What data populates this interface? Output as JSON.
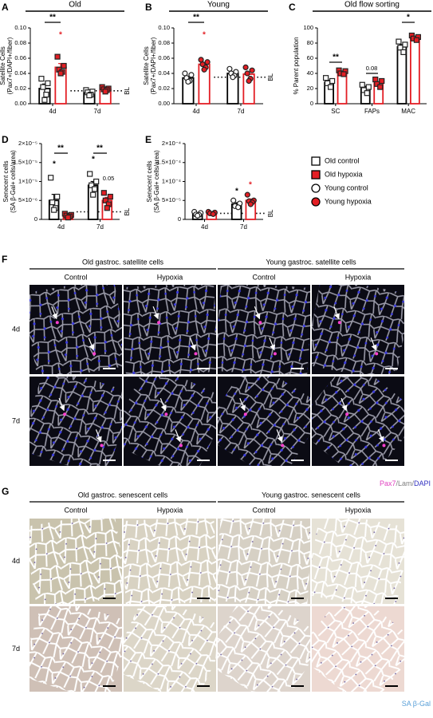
{
  "chart_data": [
    {
      "type": "bar",
      "panel_label": "A",
      "title": "Old",
      "y_label": [
        "Satellite Cells",
        "(Pax7+/DAPI+/fiber)"
      ],
      "categories": [
        "4d",
        "7d"
      ],
      "series": [
        {
          "name": "Old control",
          "color": "#000000",
          "marker": "square",
          "marker_fill": "#ffffff",
          "values": [
            0.02,
            0.014
          ],
          "errors": [
            0.006,
            0.002
          ],
          "points": [
            [
              0.033,
              0.027,
              0.022,
              0.012,
              0.005
            ],
            [
              0.018,
              0.016,
              0.015,
              0.012,
              0.011
            ]
          ]
        },
        {
          "name": "Old hypoxia",
          "color": "#e31e24",
          "marker": "square",
          "marker_fill": "#e31e24",
          "values": [
            0.048,
            0.019
          ],
          "errors": [
            0.005,
            0.002
          ],
          "points": [
            [
              0.062,
              0.05,
              0.045,
              0.042,
              0.04
            ],
            [
              0.022,
              0.02,
              0.019,
              0.018,
              0.016
            ]
          ]
        }
      ],
      "ylim": [
        0,
        0.1
      ],
      "yticks": [
        {
          "value": 0,
          "label": "0.00"
        },
        {
          "value": 0.02,
          "label": "0.02"
        },
        {
          "value": 0.04,
          "label": "0.04"
        },
        {
          "value": 0.06,
          "label": "0.06"
        },
        {
          "value": 0.08,
          "label": "0.08"
        },
        {
          "value": 0.1,
          "label": "0.10"
        }
      ],
      "baseline": {
        "value": 0.017,
        "label": "BL"
      },
      "annotations": [
        {
          "text": "**",
          "color": "#000000"
        },
        {
          "text": "*",
          "color": "#e31e24"
        }
      ]
    },
    {
      "type": "bar",
      "panel_label": "B",
      "title": "Young",
      "y_label": [
        "Satellite Cells",
        "(Pax7+/DAPI+/fiber)"
      ],
      "categories": [
        "4d",
        "7d"
      ],
      "series": [
        {
          "name": "Young control",
          "color": "#000000",
          "marker": "circle",
          "marker_fill": "#ffffff",
          "values": [
            0.034,
            0.04
          ],
          "errors": [
            0.002,
            0.002
          ],
          "points": [
            [
              0.04,
              0.038,
              0.034,
              0.03,
              0.029
            ],
            [
              0.046,
              0.042,
              0.04,
              0.037,
              0.035
            ]
          ]
        },
        {
          "name": "Young hypoxia",
          "color": "#e31e24",
          "marker": "circle",
          "marker_fill": "#e31e24",
          "values": [
            0.052,
            0.039
          ],
          "errors": [
            0.002,
            0.003
          ],
          "points": [
            [
              0.058,
              0.055,
              0.052,
              0.048,
              0.045
            ],
            [
              0.048,
              0.044,
              0.04,
              0.033,
              0.03
            ]
          ]
        }
      ],
      "ylim": [
        0,
        0.1
      ],
      "yticks": [
        {
          "value": 0,
          "label": "0.00"
        },
        {
          "value": 0.02,
          "label": "0.02"
        },
        {
          "value": 0.04,
          "label": "0.04"
        },
        {
          "value": 0.06,
          "label": "0.06"
        },
        {
          "value": 0.08,
          "label": "0.08"
        },
        {
          "value": 0.1,
          "label": "0.10"
        }
      ],
      "baseline": {
        "value": 0.035,
        "label": "BL"
      },
      "annotations": [
        {
          "text": "**",
          "color": "#000000"
        },
        {
          "text": "*",
          "color": "#e31e24"
        }
      ]
    },
    {
      "type": "bar",
      "panel_label": "C",
      "title": "Old flow sorting",
      "y_label": [
        "% Parent population"
      ],
      "categories": [
        "SC",
        "FAPs",
        "MAC"
      ],
      "series": [
        {
          "name": "Old control",
          "color": "#000000",
          "marker": "square",
          "marker_fill": "#ffffff",
          "values": [
            28,
            20,
            75
          ],
          "errors": [
            3,
            3,
            3
          ],
          "points": [
            [
              34,
              30,
              27,
              22
            ],
            [
              25,
              22,
              18,
              14
            ],
            [
              82,
              78,
              74,
              68
            ]
          ]
        },
        {
          "name": "Old hypoxia",
          "color": "#e31e24",
          "marker": "square",
          "marker_fill": "#e31e24",
          "values": [
            41,
            27,
            87
          ],
          "errors": [
            1,
            2,
            1
          ],
          "points": [
            [
              44,
              43,
              40,
              39
            ],
            [
              32,
              30,
              26,
              22
            ],
            [
              90,
              88,
              86,
              84
            ]
          ]
        }
      ],
      "ylim": [
        0,
        100
      ],
      "yticks": [
        0,
        20,
        40,
        60,
        80,
        100
      ],
      "annotations": [
        {
          "text": "**",
          "color": "#000000"
        },
        {
          "text": "0.08",
          "color": "#000000"
        },
        {
          "text": "*",
          "color": "#000000"
        }
      ]
    },
    {
      "type": "bar",
      "panel_label": "D",
      "y_label": [
        "Senecent cells",
        "(SA β-Gal+ cells/area)"
      ],
      "categories": [
        "4d",
        "7d"
      ],
      "series": [
        {
          "name": "Old control",
          "color": "#000000",
          "marker": "square",
          "marker_fill": "#ffffff",
          "values": [
            5e-06,
            9e-06
          ],
          "errors": [
            1.6e-06,
            1e-06
          ],
          "points": [
            [
              1.1e-05,
              6e-06,
              4.5e-06,
              3e-06,
              2.5e-06
            ],
            [
              1.2e-05,
              1e-05,
              9e-06,
              8e-06,
              6.5e-06
            ]
          ]
        },
        {
          "name": "Old hypoxia",
          "color": "#e31e24",
          "marker": "square",
          "marker_fill": "#e31e24",
          "values": [
            1.2e-06,
            5e-06
          ],
          "errors": [
            3e-07,
            8e-07
          ],
          "points": [
            [
              1.5e-06,
              1.2e-06,
              1e-06,
              8e-07,
              5e-07
            ],
            [
              7e-06,
              6e-06,
              5e-06,
              4e-06,
              3e-06
            ]
          ]
        }
      ],
      "ylim": [
        0,
        2e-05
      ],
      "yticks": [
        0,
        {
          "value": 5e-06,
          "label": "5×10⁻⁶"
        },
        {
          "value": 1e-05,
          "label": "1×10⁻⁵"
        },
        {
          "value": 1.5e-05,
          "label": "1.5×10⁻⁵"
        },
        {
          "value": 2e-05,
          "label": "2×10⁻⁵"
        }
      ],
      "baseline": {
        "value": 2e-06,
        "label": "BL"
      },
      "annotations": [
        {
          "text": "*",
          "color": "#000000"
        },
        {
          "text": "**",
          "color": "#000000"
        },
        {
          "text": "*",
          "color": "#000000"
        },
        {
          "text": "**",
          "color": "#000000"
        },
        {
          "text": "0.05",
          "color": "#000000"
        }
      ]
    },
    {
      "type": "bar",
      "panel_label": "E",
      "y_label": [
        "Senecent cells",
        "(SA β-Gal+ cells/area)"
      ],
      "categories": [
        "4d",
        "7d"
      ],
      "series": [
        {
          "name": "Young control",
          "color": "#000000",
          "marker": "circle",
          "marker_fill": "#ffffff",
          "values": [
            1.4e-05,
            4e-05
          ],
          "errors": [
            2e-06,
            4e-06
          ],
          "points": [
            [
              2e-05,
              1.7e-05,
              1.3e-05,
              1.2e-05,
              1e-05
            ],
            [
              5e-05,
              4.2e-05,
              3.5e-05,
              3.2e-05
            ]
          ]
        },
        {
          "name": "Young hypoxia",
          "color": "#e31e24",
          "marker": "circle",
          "marker_fill": "#e31e24",
          "values": [
            1.7e-05,
            5e-05
          ],
          "errors": [
            1.5e-06,
            4e-06
          ],
          "points": [
            [
              2e-05,
              1.8e-05,
              1.6e-05,
              1.4e-05
            ],
            [
              6.5e-05,
              5e-05,
              4.8e-05,
              4.5e-05,
              4e-05
            ]
          ]
        }
      ],
      "ylim": [
        0,
        0.0002
      ],
      "yticks": [
        0,
        {
          "value": 5e-05,
          "label": "5×10⁻⁵"
        },
        {
          "value": 0.0001,
          "label": "1×10⁻⁴"
        },
        {
          "value": 0.00015,
          "label": "1.5×10⁻⁴"
        },
        {
          "value": 0.0002,
          "label": "2×10⁻⁴"
        }
      ],
      "baseline": {
        "value": 1.6e-05,
        "label": "BL"
      },
      "annotations": [
        {
          "text": "*",
          "color": "#000000"
        },
        {
          "text": "*",
          "color": "#e31e24"
        }
      ]
    }
  ],
  "legend": [
    {
      "name": "Old control",
      "marker": "square",
      "color": "#000000",
      "fill": "#ffffff"
    },
    {
      "name": "Old hypoxia",
      "marker": "square",
      "color": "#000000",
      "fill": "#e31e24"
    },
    {
      "name": "Young control",
      "marker": "circle",
      "color": "#000000",
      "fill": "#ffffff"
    },
    {
      "name": "Young hypoxia",
      "marker": "circle",
      "color": "#000000",
      "fill": "#e31e24"
    }
  ],
  "panel_F": {
    "label": "F",
    "groups": [
      "Old gastroc. satellite cells",
      "Young gastroc. satellite cells"
    ],
    "columns": [
      "Control",
      "Hypoxia",
      "Control",
      "Hypoxia"
    ],
    "rows": [
      "4d",
      "7d"
    ],
    "stain": [
      {
        "text": "Pax7",
        "color": "#e040c0"
      },
      {
        "text": "/Lam/",
        "color": "#808080"
      },
      {
        "text": "DAPI",
        "color": "#3030c0"
      }
    ]
  },
  "panel_G": {
    "label": "G",
    "groups": [
      "Old gastroc. senescent cells",
      "Young gastroc. senescent cells"
    ],
    "columns": [
      "Control",
      "Hypoxia",
      "Control",
      "Hypoxia"
    ],
    "rows": [
      "4d",
      "7d"
    ],
    "stain": [
      {
        "text": "SA β-Gal",
        "color": "#5aa0d8"
      }
    ]
  }
}
